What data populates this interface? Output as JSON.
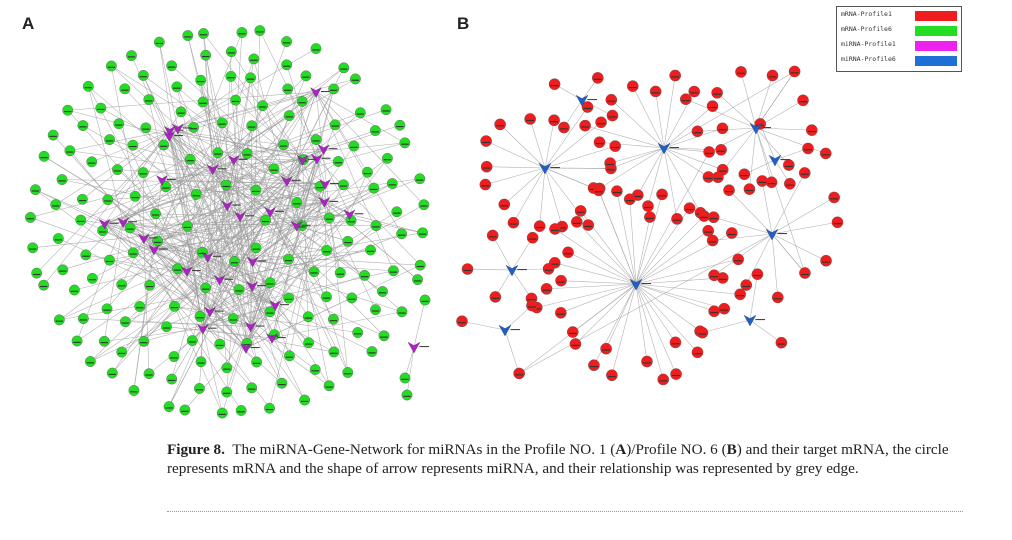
{
  "panels": {
    "a": {
      "letter": "A"
    },
    "b": {
      "letter": "B"
    }
  },
  "legend": {
    "items": [
      {
        "label": "mRNA-Profile1",
        "color": "#ef1d1d",
        "shape": "swatch"
      },
      {
        "label": "mRNA-Profile6",
        "color": "#22dd22",
        "shape": "swatch"
      },
      {
        "label": "miRNA-Profile1",
        "color": "#ee22ee",
        "shape": "swatch"
      },
      {
        "label": "miRNA-Profile6",
        "color": "#1f6fd8",
        "shape": "swatch"
      }
    ]
  },
  "colors": {
    "mrna_profile1": "#ef1d1d",
    "mrna_profile6": "#22dd22",
    "mirna_profile1": "#b020c8",
    "mirna_profile6": "#1f5fc8",
    "edge": "#9a9a9a"
  },
  "caption": {
    "figure_label": "Figure 8.",
    "text_1": "The miRNA-Gene-Network for miRNAs in the Profile NO. 1 (",
    "bold_a": "A",
    "text_2": ")/Profile NO. 6 (",
    "bold_b": "B",
    "text_3": ") and their target mRNA, the circle represents mRNA and the shape of arrow represents miRNA, and their relationship was represented by grey edge."
  }
}
